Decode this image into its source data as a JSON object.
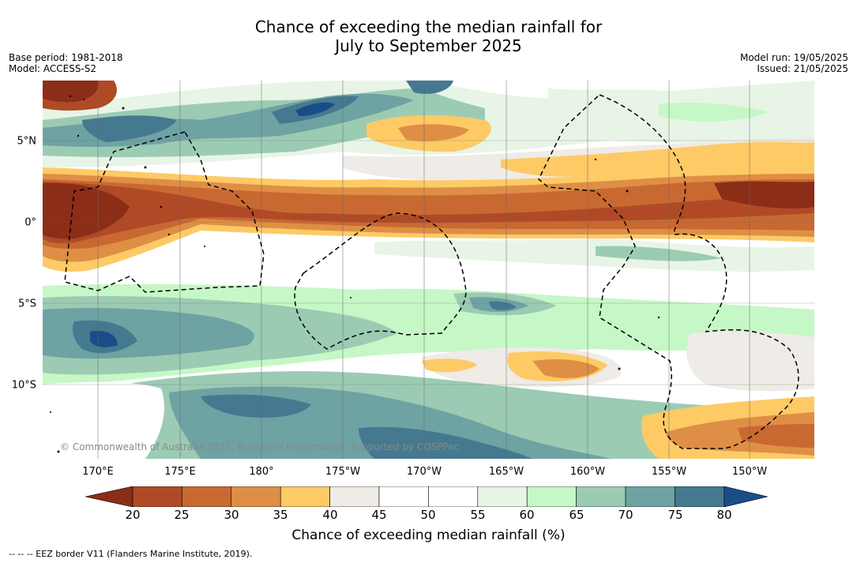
{
  "title_line1": "Chance of exceeding the median rainfall for",
  "title_line2": "July to September 2025",
  "base_period": "Base period: 1981-2018",
  "model": "Model: ACCESS-S2",
  "model_run": "Model run: 19/05/2025",
  "issued": "Issued: 21/05/2025",
  "lat_labels": [
    "5°N",
    "0°",
    "5°S",
    "10°S"
  ],
  "lon_labels": [
    "170°E",
    "175°E",
    "180°",
    "175°W",
    "170°W",
    "165°W",
    "160°W",
    "155°W",
    "150°W"
  ],
  "copyright": "© Commonwealth of Australia 2025, Bureau of Meteorology, supported by COSPPac",
  "colorbar": {
    "label": "Chance of exceeding median rainfall (%)",
    "ticks": [
      "20",
      "25",
      "30",
      "35",
      "40",
      "45",
      "50",
      "55",
      "60",
      "65",
      "70",
      "75",
      "80"
    ],
    "colors": [
      "#8c2d18",
      "#b04a26",
      "#c96932",
      "#df8f45",
      "#fdca66",
      "#efebe6",
      "#ffffff",
      "#ffffff",
      "#e8f5e6",
      "#c6f7c6",
      "#9ccbb3",
      "#6fa2a3",
      "#45798f",
      "#1a4d88"
    ]
  },
  "eez_legend": "--  --  -- EEZ border V11 (Flanders Marine Institute, 2019)."
}
